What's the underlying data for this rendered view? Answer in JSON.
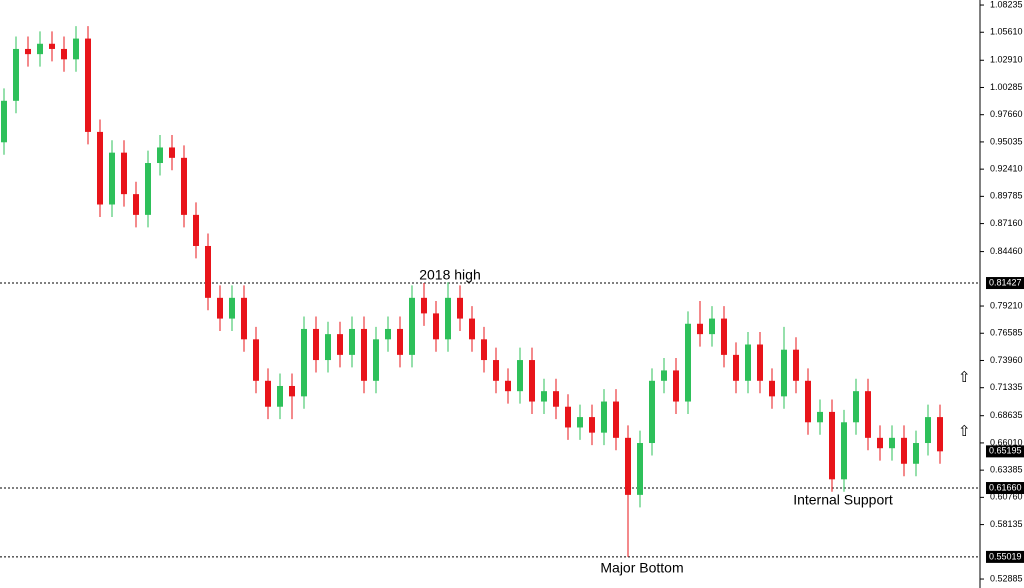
{
  "chart_data": {
    "type": "candlestick",
    "ylim": [
      0.5202,
      1.0872
    ],
    "yticks": [
      1.08235,
      {
        "value": 1.0561,
        "label": "1.05610"
      },
      {
        "value": 1.0291,
        "label": "1.02910"
      },
      1.00285,
      {
        "value": 0.9766,
        "label": "0.97660"
      },
      0.95035,
      {
        "value": 0.9241,
        "label": "0.92410"
      },
      0.89785,
      {
        "value": 0.8716,
        "label": "0.87160"
      },
      {
        "value": 0.8446,
        "label": "0.84460"
      },
      {
        "value": 0.7921,
        "label": "0.79210"
      },
      0.76585,
      {
        "value": 0.7396,
        "label": "0.73960"
      },
      0.71335,
      0.68635,
      {
        "value": 0.6601,
        "label": "0.66010"
      },
      0.63385,
      {
        "value": 0.6076,
        "label": "0.60760"
      },
      0.58135,
      0.52885
    ],
    "level_lines": [
      0.81427,
      {
        "value": 0.6166,
        "label": "0.61660"
      },
      0.55019
    ],
    "current_price": 0.65195,
    "annotations": [
      "2018 high",
      "Internal Support",
      "Major Bottom"
    ],
    "up_color": "#2ec05a",
    "down_color": "#e8141a",
    "open": [
      0.95,
      0.99,
      1.04,
      1.035,
      1.045,
      1.04,
      1.03,
      1.05,
      0.96,
      0.89,
      0.94,
      0.9,
      0.88,
      0.93,
      0.945,
      0.935,
      0.88,
      0.85,
      0.8,
      0.78,
      0.8,
      0.76,
      0.72,
      0.695,
      0.715,
      0.705,
      0.77,
      0.74,
      0.765,
      0.745,
      0.77,
      0.72,
      0.76,
      0.77,
      0.745,
      0.8,
      0.785,
      0.76,
      0.8,
      0.78,
      0.76,
      0.74,
      0.72,
      0.71,
      0.74,
      0.7,
      0.71,
      0.695,
      0.675,
      0.685,
      0.67,
      0.7,
      0.665,
      0.61,
      0.66,
      0.72,
      0.73,
      0.7,
      0.775,
      0.765,
      0.78,
      0.745,
      0.72,
      0.755,
      0.72,
      0.705,
      0.75,
      0.72,
      0.68,
      0.69,
      0.625,
      0.68,
      0.71,
      0.665,
      0.655,
      0.665,
      0.64,
      0.66,
      0.685
    ],
    "high": [
      1.002,
      1.052,
      1.052,
      1.057,
      1.057,
      1.052,
      1.062,
      1.062,
      0.972,
      0.952,
      0.952,
      0.912,
      0.942,
      0.957,
      0.957,
      0.947,
      0.892,
      0.862,
      0.812,
      0.812,
      0.812,
      0.772,
      0.732,
      0.727,
      0.727,
      0.782,
      0.782,
      0.777,
      0.777,
      0.782,
      0.782,
      0.772,
      0.782,
      0.782,
      0.812,
      0.81427,
      0.797,
      0.815,
      0.812,
      0.792,
      0.772,
      0.752,
      0.732,
      0.752,
      0.752,
      0.722,
      0.722,
      0.707,
      0.697,
      0.697,
      0.712,
      0.712,
      0.677,
      0.672,
      0.732,
      0.742,
      0.742,
      0.787,
      0.797,
      0.792,
      0.792,
      0.757,
      0.767,
      0.767,
      0.732,
      0.772,
      0.762,
      0.732,
      0.702,
      0.702,
      0.692,
      0.722,
      0.722,
      0.677,
      0.677,
      0.677,
      0.672,
      0.697,
      0.697
    ],
    "low": [
      0.938,
      0.978,
      1.023,
      1.023,
      1.028,
      1.018,
      1.018,
      0.948,
      0.878,
      0.878,
      0.888,
      0.868,
      0.868,
      0.918,
      0.923,
      0.868,
      0.838,
      0.788,
      0.768,
      0.768,
      0.748,
      0.708,
      0.683,
      0.683,
      0.683,
      0.693,
      0.728,
      0.728,
      0.733,
      0.733,
      0.708,
      0.708,
      0.748,
      0.733,
      0.733,
      0.773,
      0.748,
      0.748,
      0.768,
      0.748,
      0.728,
      0.708,
      0.698,
      0.698,
      0.688,
      0.688,
      0.683,
      0.663,
      0.663,
      0.658,
      0.658,
      0.653,
      0.55019,
      0.598,
      0.648,
      0.708,
      0.688,
      0.688,
      0.753,
      0.753,
      0.733,
      0.708,
      0.708,
      0.708,
      0.693,
      0.693,
      0.708,
      0.668,
      0.668,
      0.613,
      0.613,
      0.668,
      0.653,
      0.643,
      0.643,
      0.628,
      0.628,
      0.648,
      0.64
    ],
    "close": [
      0.99,
      1.04,
      1.035,
      1.045,
      1.04,
      1.03,
      1.05,
      0.96,
      0.89,
      0.94,
      0.9,
      0.88,
      0.93,
      0.945,
      0.935,
      0.88,
      0.85,
      0.8,
      0.78,
      0.8,
      0.76,
      0.72,
      0.695,
      0.715,
      0.705,
      0.77,
      0.74,
      0.765,
      0.745,
      0.77,
      0.72,
      0.76,
      0.77,
      0.745,
      0.8,
      0.785,
      0.76,
      0.8,
      0.78,
      0.76,
      0.74,
      0.72,
      0.71,
      0.74,
      0.7,
      0.71,
      0.695,
      0.675,
      0.685,
      0.67,
      0.7,
      0.665,
      0.61,
      0.66,
      0.72,
      0.73,
      0.7,
      0.775,
      0.765,
      0.78,
      0.745,
      0.72,
      0.755,
      0.72,
      0.705,
      0.75,
      0.72,
      0.68,
      0.69,
      0.625,
      0.68,
      0.71,
      0.665,
      0.655,
      0.665,
      0.64,
      0.66,
      0.685,
      0.652
    ]
  }
}
